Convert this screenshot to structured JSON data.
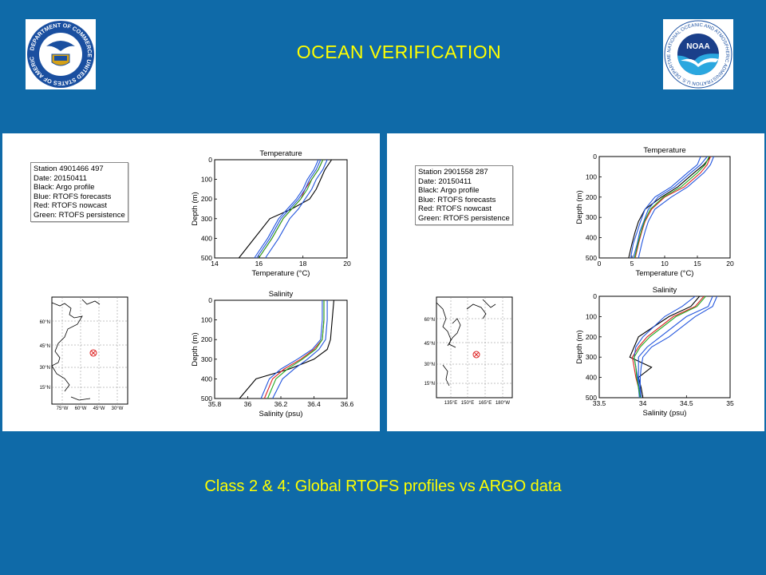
{
  "slide": {
    "title": "OCEAN  VERIFICATION",
    "caption": "Class 2 & 4: Global RTOFS profiles vs ARGO data"
  },
  "logos": {
    "left": {
      "icon": "department-of-commerce-seal",
      "text": "DEPARTMENT OF COMMERCE UNITED STATES OF AMERICA"
    },
    "right": {
      "icon": "noaa-seal",
      "text": "NOAA",
      "ring_text": "NATIONAL OCEANIC AND ATMOSPHERIC ADMINISTRATION U.S. DEPARTMENT OF COMMERCE"
    }
  },
  "colors": {
    "background": "#0f6aa8",
    "title": "#ffff00",
    "argo": "#000000",
    "forecast": "#2255dd",
    "nowcast": "#dd2222",
    "persistence": "#22aa22"
  },
  "panels": [
    {
      "legend": {
        "station": "Station 4901466 497",
        "date": " Date: 20150411",
        "black": "Black: Argo profile",
        "blue": " Blue: RTOFS forecasts",
        "red": "  Red: RTOFS nowcast",
        "green": "Green: RTOFS persistence"
      },
      "map": {
        "region": "North Atlantic",
        "lat_labels": [
          "60°N",
          "45°N",
          "30°N",
          "15°N"
        ],
        "lon_labels": [
          "75°W",
          "60°W",
          "45°W",
          "30°W"
        ],
        "marker": {
          "lon": -50,
          "lat": 35
        }
      }
    },
    {
      "legend": {
        "station": "Station 2901558 287",
        "date": " Date: 20150411",
        "black": "Black: Argo profile",
        "blue": " Blue: RTOFS forecasts",
        "red": "  Red: RTOFS nowcast",
        "green": "Green: RTOFS persistence"
      },
      "map": {
        "region": "Northwest Pacific",
        "lat_labels": [
          "60°N",
          "45°N",
          "30°N",
          "15°N"
        ],
        "lon_labels": [
          "135°E",
          "150°E",
          "165°E",
          "180°W"
        ],
        "marker": {
          "lon": 158,
          "lat": 35
        }
      }
    }
  ],
  "chart_data": [
    {
      "type": "line",
      "title": "Temperature",
      "xlabel": "Temperature (°C)",
      "ylabel": "Depth (m)",
      "xlim": [
        14,
        20
      ],
      "ylim": [
        500,
        0
      ],
      "xticks": [
        14,
        16,
        18,
        20
      ],
      "yticks": [
        0,
        100,
        200,
        300,
        400,
        500
      ],
      "series": [
        {
          "name": "Argo profile",
          "color": "#000000",
          "x": [
            19.3,
            19.0,
            18.8,
            18.6,
            18.3,
            17.5,
            16.5,
            15.8,
            15.1
          ],
          "y": [
            0,
            50,
            100,
            150,
            200,
            250,
            300,
            400,
            500
          ]
        },
        {
          "name": "RTOFS nowcast",
          "color": "#dd2222",
          "x": [
            18.9,
            18.7,
            18.4,
            18.1,
            17.9,
            17.5,
            17.1,
            16.6,
            16.0
          ],
          "y": [
            0,
            50,
            100,
            150,
            200,
            250,
            300,
            400,
            500
          ]
        },
        {
          "name": "RTOFS forecasts",
          "color": "#2255dd",
          "x": [
            18.7,
            18.5,
            18.2,
            18.0,
            17.7,
            17.3,
            16.9,
            16.4,
            15.8
          ],
          "y": [
            0,
            50,
            100,
            150,
            200,
            250,
            300,
            400,
            500
          ]
        },
        {
          "name": "RTOFS forecasts",
          "color": "#2255dd",
          "x": [
            19.1,
            18.9,
            18.6,
            18.4,
            18.1,
            17.8,
            17.4,
            16.9,
            16.3
          ],
          "y": [
            0,
            50,
            100,
            150,
            200,
            250,
            300,
            400,
            500
          ]
        },
        {
          "name": "RTOFS forecasts",
          "color": "#2255dd",
          "x": [
            18.8,
            18.6,
            18.3,
            18.1,
            17.8,
            17.4,
            17.0,
            16.5,
            15.9
          ],
          "y": [
            0,
            50,
            100,
            150,
            200,
            250,
            300,
            400,
            500
          ]
        },
        {
          "name": "RTOFS persistence",
          "color": "#22aa22",
          "x": [
            18.9,
            18.7,
            18.4,
            18.2,
            17.9,
            17.5,
            17.1,
            16.6,
            16.0
          ],
          "y": [
            0,
            50,
            100,
            150,
            200,
            250,
            300,
            400,
            500
          ]
        }
      ]
    },
    {
      "type": "line",
      "title": "Salinity",
      "xlabel": "Salinity (psu)",
      "ylabel": "Depth (m)",
      "xlim": [
        35.8,
        36.6
      ],
      "ylim": [
        500,
        0
      ],
      "xticks": [
        35.8,
        36,
        36.2,
        36.4,
        36.6
      ],
      "yticks": [
        0,
        100,
        200,
        300,
        400,
        500
      ],
      "series": [
        {
          "name": "Argo profile",
          "color": "#000000",
          "x": [
            36.52,
            36.51,
            36.5,
            36.48,
            36.4,
            36.25,
            36.05,
            35.95
          ],
          "y": [
            0,
            100,
            200,
            250,
            300,
            350,
            400,
            500
          ]
        },
        {
          "name": "RTOFS nowcast",
          "color": "#dd2222",
          "x": [
            36.46,
            36.46,
            36.45,
            36.4,
            36.32,
            36.22,
            36.15,
            36.1
          ],
          "y": [
            0,
            100,
            200,
            250,
            300,
            350,
            400,
            500
          ]
        },
        {
          "name": "RTOFS forecasts",
          "color": "#2255dd",
          "x": [
            36.45,
            36.45,
            36.44,
            36.39,
            36.3,
            36.2,
            36.13,
            36.08
          ],
          "y": [
            0,
            100,
            200,
            250,
            300,
            350,
            400,
            500
          ]
        },
        {
          "name": "RTOFS forecasts",
          "color": "#2255dd",
          "x": [
            36.48,
            36.48,
            36.47,
            36.43,
            36.36,
            36.28,
            36.21,
            36.15
          ],
          "y": [
            0,
            100,
            200,
            250,
            300,
            350,
            400,
            500
          ]
        },
        {
          "name": "RTOFS persistence",
          "color": "#22aa22",
          "x": [
            36.46,
            36.46,
            36.45,
            36.41,
            36.33,
            36.24,
            36.17,
            36.12
          ],
          "y": [
            0,
            100,
            200,
            250,
            300,
            350,
            400,
            500
          ]
        }
      ]
    },
    {
      "type": "line",
      "title": "Temperature",
      "xlabel": "Temperature (°C)",
      "ylabel": "Depth (m)",
      "xlim": [
        0,
        20
      ],
      "ylim": [
        500,
        0
      ],
      "xticks": [
        0,
        5,
        10,
        15,
        20
      ],
      "yticks": [
        0,
        100,
        200,
        300,
        400,
        500
      ],
      "series": [
        {
          "name": "Argo profile",
          "color": "#000000",
          "x": [
            17.0,
            16.0,
            14.5,
            12.0,
            9.5,
            7.0,
            6.0,
            5.5,
            5.0,
            4.5
          ],
          "y": [
            0,
            40,
            80,
            150,
            200,
            260,
            320,
            370,
            430,
            500
          ]
        },
        {
          "name": "RTOFS nowcast",
          "color": "#dd2222",
          "x": [
            17.0,
            16.5,
            15.5,
            13.0,
            10.0,
            8.0,
            7.0,
            6.5,
            6.0,
            5.5
          ],
          "y": [
            0,
            40,
            80,
            150,
            200,
            260,
            320,
            370,
            430,
            500
          ]
        },
        {
          "name": "RTOFS forecasts",
          "color": "#2255dd",
          "x": [
            16.5,
            15.5,
            14.0,
            11.5,
            9.0,
            7.5,
            6.8,
            6.2,
            5.8,
            5.2
          ],
          "y": [
            0,
            40,
            80,
            150,
            200,
            260,
            320,
            370,
            430,
            500
          ]
        },
        {
          "name": "RTOFS forecasts",
          "color": "#2255dd",
          "x": [
            17.5,
            17.0,
            16.0,
            13.5,
            11.0,
            8.5,
            7.5,
            7.0,
            6.5,
            6.0
          ],
          "y": [
            0,
            40,
            80,
            150,
            200,
            260,
            320,
            370,
            430,
            500
          ]
        },
        {
          "name": "RTOFS forecasts",
          "color": "#2255dd",
          "x": [
            15.5,
            15.0,
            13.5,
            11.0,
            8.5,
            7.0,
            6.3,
            5.8,
            5.2,
            4.8
          ],
          "y": [
            0,
            40,
            80,
            150,
            200,
            260,
            320,
            370,
            430,
            500
          ]
        },
        {
          "name": "RTOFS persistence",
          "color": "#22aa22",
          "x": [
            16.8,
            16.2,
            15.0,
            12.5,
            9.8,
            7.8,
            6.9,
            6.4,
            5.9,
            5.4
          ],
          "y": [
            0,
            40,
            80,
            150,
            200,
            260,
            320,
            370,
            430,
            500
          ]
        }
      ]
    },
    {
      "type": "line",
      "title": "Salinity",
      "xlabel": "Salinity (psu)",
      "ylabel": "Depth (m)",
      "xlim": [
        33.5,
        35
      ],
      "ylim": [
        500,
        0
      ],
      "xticks": [
        33.5,
        34,
        34.5,
        35
      ],
      "yticks": [
        0,
        100,
        200,
        300,
        400,
        500
      ],
      "series": [
        {
          "name": "Argo profile",
          "color": "#000000",
          "x": [
            34.65,
            34.55,
            34.3,
            33.95,
            33.9,
            33.85,
            34.1,
            33.95,
            33.98,
            34.0
          ],
          "y": [
            0,
            50,
            100,
            200,
            250,
            300,
            350,
            400,
            450,
            500
          ]
        },
        {
          "name": "RTOFS nowcast",
          "color": "#dd2222",
          "x": [
            34.7,
            34.6,
            34.35,
            34.05,
            33.95,
            33.88,
            33.9,
            33.92,
            33.95,
            33.97
          ],
          "y": [
            0,
            50,
            100,
            200,
            250,
            300,
            350,
            400,
            450,
            500
          ]
        },
        {
          "name": "RTOFS forecasts",
          "color": "#2255dd",
          "x": [
            34.8,
            34.75,
            34.5,
            34.2,
            34.05,
            33.95,
            33.95,
            33.95,
            33.96,
            33.98
          ],
          "y": [
            0,
            50,
            100,
            200,
            250,
            300,
            350,
            400,
            450,
            500
          ]
        },
        {
          "name": "RTOFS forecasts",
          "color": "#2255dd",
          "x": [
            34.6,
            34.45,
            34.25,
            34.0,
            33.92,
            33.9,
            33.92,
            33.94,
            33.95,
            33.96
          ],
          "y": [
            0,
            50,
            100,
            200,
            250,
            300,
            350,
            400,
            450,
            500
          ]
        },
        {
          "name": "RTOFS forecasts",
          "color": "#2255dd",
          "x": [
            34.85,
            34.8,
            34.6,
            34.3,
            34.1,
            34.0,
            33.98,
            33.97,
            33.97,
            33.98
          ],
          "y": [
            0,
            50,
            100,
            200,
            250,
            300,
            350,
            400,
            450,
            500
          ]
        },
        {
          "name": "RTOFS persistence",
          "color": "#22aa22",
          "x": [
            34.72,
            34.62,
            34.38,
            34.08,
            33.97,
            33.9,
            33.92,
            33.93,
            33.95,
            33.97
          ],
          "y": [
            0,
            50,
            100,
            200,
            250,
            300,
            350,
            400,
            450,
            500
          ]
        }
      ]
    }
  ]
}
